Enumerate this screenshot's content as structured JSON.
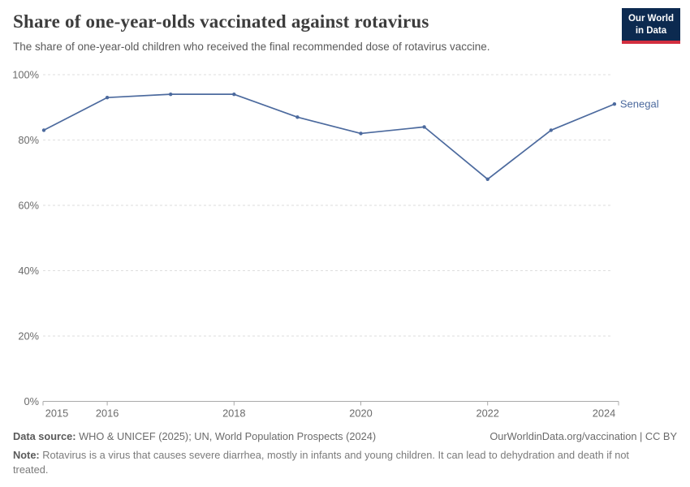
{
  "header": {
    "title": "Share of one-year-olds vaccinated against rotavirus",
    "subtitle": "The share of one-year-old children who received the final recommended dose of rotavirus vaccine.",
    "logo": {
      "line1": "Our World",
      "line2": "in Data"
    }
  },
  "chart_data": {
    "type": "line",
    "title": "Share of one-year-olds vaccinated against rotavirus",
    "x": [
      2015,
      2016,
      2017,
      2018,
      2019,
      2020,
      2021,
      2022,
      2023,
      2024
    ],
    "series": [
      {
        "name": "Senegal",
        "values": [
          83,
          93,
          94,
          94,
          87,
          82,
          84,
          68,
          83,
          91
        ]
      }
    ],
    "unit": "%",
    "ylim": [
      0,
      100
    ],
    "y_ticks": [
      0,
      20,
      40,
      60,
      80,
      100
    ],
    "y_tick_suffix": "%",
    "x_tick_labels": [
      2015,
      2016,
      2018,
      2020,
      2022,
      2024
    ],
    "grid": "horizontal-dashed",
    "legend_position": "line-end-label"
  },
  "footer": {
    "datasource_label": "Data source:",
    "datasource_text": "WHO & UNICEF (2025); UN, World Population Prospects (2024)",
    "attribution": "OurWorldinData.org/vaccination | CC BY",
    "note_label": "Note:",
    "note_text": "Rotavirus is a virus that causes severe diarrhea, mostly in infants and young children. It can lead to dehydration and death if not treated."
  },
  "colors": {
    "series_line": "#4c6a9e",
    "logo_background": "#0c2a50",
    "logo_accent": "#d22e3f",
    "grid_line": "#dedede",
    "axis_line": "#a9a9a9",
    "tick_label": "#6b6b6b",
    "title_text": "#3d3d3d"
  }
}
